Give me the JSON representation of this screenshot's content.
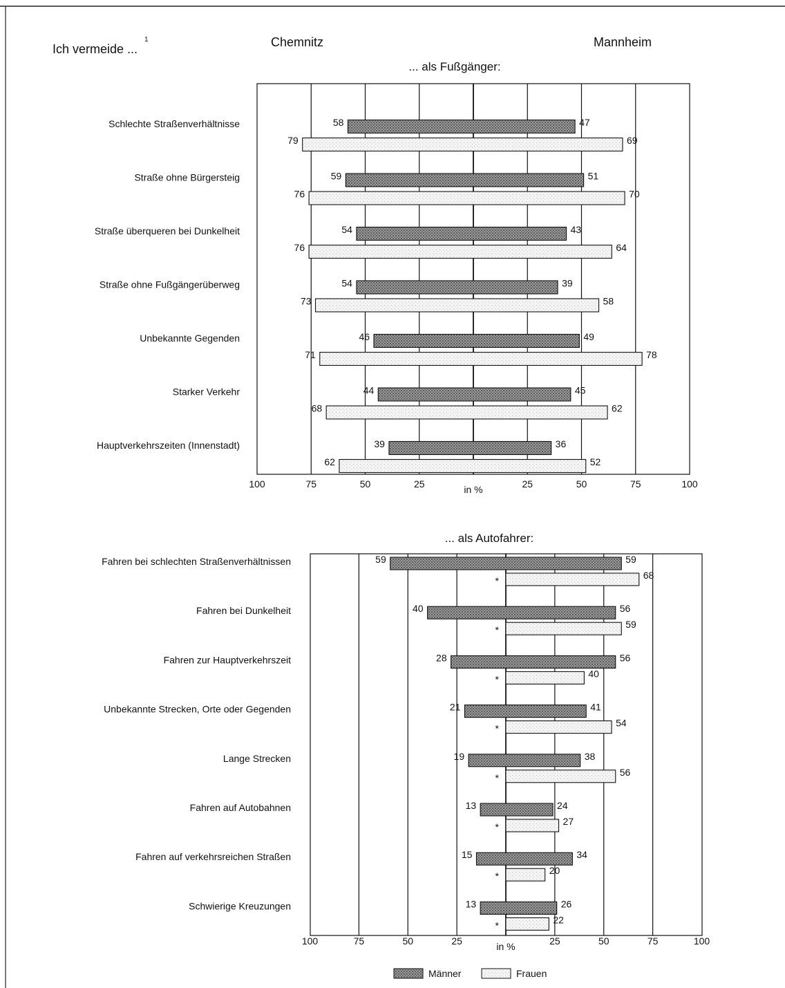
{
  "header": {
    "left": "Ich vermeide ...",
    "left_note": "1",
    "city_left": "Chemnitz",
    "city_right": "Mannheim"
  },
  "legend": {
    "men": "Männer",
    "women": "Frauen"
  },
  "colors": {
    "men": "#8a8a8a",
    "women": "#ededed",
    "stroke": "#111111"
  },
  "chart_data": [
    {
      "type": "bar",
      "title": "... als Fußgänger:",
      "xlabel": "in %",
      "left_city": "Chemnitz",
      "right_city": "Mannheim",
      "axis_ticks": [
        "100",
        "75",
        "50",
        "25",
        "in %",
        "25",
        "50",
        "75",
        "100"
      ],
      "xlim": [
        -100,
        100
      ],
      "categories": [
        "Schlechte Straßenverhältnisse",
        "Straße ohne Bürgersteig",
        "Straße überqueren bei Dunkelheit",
        "Straße ohne Fußgängerüberweg",
        "Unbekannte Gegenden",
        "Starker Verkehr",
        "Hauptverkehrszeiten (Innenstadt)"
      ],
      "series": [
        {
          "name": "Männer",
          "left": [
            58,
            59,
            54,
            54,
            46,
            44,
            39
          ],
          "right": [
            47,
            51,
            43,
            39,
            49,
            45,
            36
          ]
        },
        {
          "name": "Frauen",
          "left": [
            79,
            76,
            76,
            73,
            71,
            68,
            62
          ],
          "right": [
            69,
            70,
            64,
            58,
            78,
            62,
            52
          ]
        }
      ]
    },
    {
      "type": "bar",
      "title": "... als Autofahrer:",
      "xlabel": "in %",
      "axis_ticks": [
        "100",
        "75",
        "50",
        "25",
        "in %",
        "25",
        "50",
        "75",
        "100"
      ],
      "xlim": [
        -100,
        100
      ],
      "missing_marker": "*",
      "categories": [
        "Fahren bei schlechten Straßenverhältnissen",
        "Fahren bei Dunkelheit",
        "Fahren zur Hauptverkehrszeit",
        "Unbekannte Strecken, Orte oder Gegenden",
        "Lange Strecken",
        "Fahren auf Autobahnen",
        "Fahren auf verkehrsreichen Straßen",
        "Schwierige Kreuzungen"
      ],
      "series": [
        {
          "name": "Männer",
          "left": [
            59,
            40,
            28,
            21,
            19,
            13,
            15,
            13
          ],
          "right": [
            59,
            56,
            56,
            41,
            38,
            24,
            34,
            26
          ]
        },
        {
          "name": "Frauen",
          "left": [
            null,
            null,
            null,
            null,
            null,
            null,
            null,
            null
          ],
          "right": [
            68,
            59,
            40,
            54,
            56,
            27,
            20,
            22
          ]
        }
      ]
    }
  ]
}
